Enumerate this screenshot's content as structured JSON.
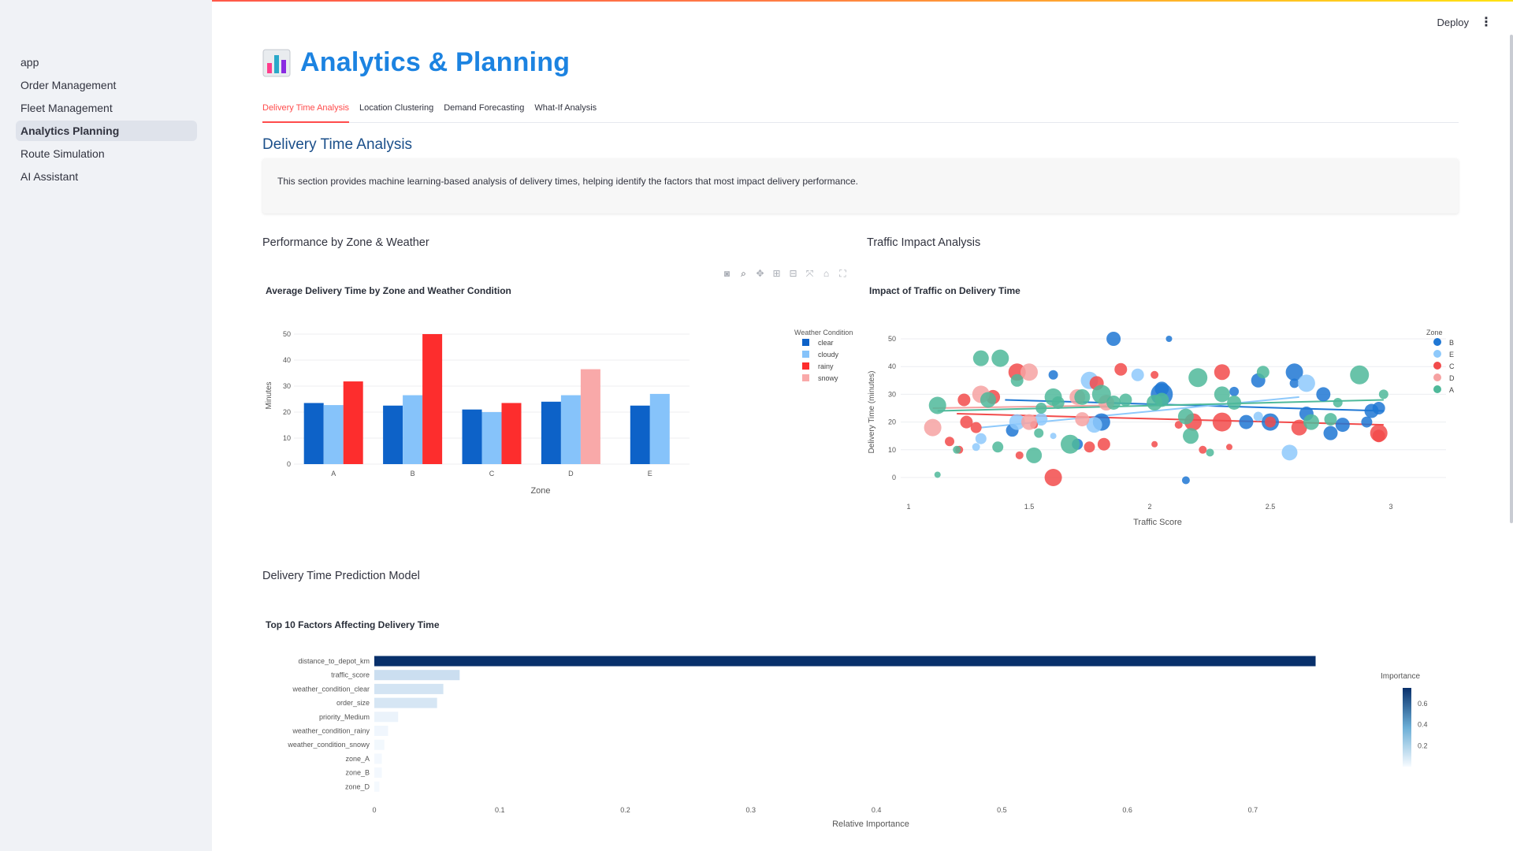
{
  "sidebar": {
    "items": [
      {
        "label": "app",
        "active": false
      },
      {
        "label": "Order Management",
        "active": false
      },
      {
        "label": "Fleet Management",
        "active": false
      },
      {
        "label": "Analytics Planning",
        "active": true
      },
      {
        "label": "Route Simulation",
        "active": false
      },
      {
        "label": "AI Assistant",
        "active": false
      }
    ]
  },
  "header": {
    "deploy_label": "Deploy",
    "menu_icon": "kebab-menu-icon"
  },
  "page": {
    "title": "Analytics & Planning",
    "title_icon": "bar-chart-icon",
    "tabs": [
      {
        "label": "Delivery Time Analysis",
        "active": true
      },
      {
        "label": "Location Clustering",
        "active": false
      },
      {
        "label": "Demand Forecasting",
        "active": false
      },
      {
        "label": "What-If Analysis",
        "active": false
      }
    ],
    "section_title": "Delivery Time Analysis",
    "info_text": "This section provides machine learning-based analysis of delivery times, helping identify the factors that most impact delivery performance.",
    "subheads": {
      "zone_weather": "Performance by Zone & Weather",
      "traffic": "Traffic Impact Analysis",
      "model": "Delivery Time Prediction Model"
    },
    "modebar_icons": [
      "camera-icon",
      "zoom-icon",
      "pan-icon",
      "zoom-in-icon",
      "zoom-out-icon",
      "autoscale-icon",
      "home-icon",
      "fullscreen-icon"
    ]
  },
  "colors": {
    "accent": "#ff4b4b",
    "title": "#1c83e1"
  },
  "chart_data": [
    {
      "type": "bar",
      "title": "Average Delivery Time by Zone and Weather Condition",
      "xlabel": "Zone",
      "ylabel": "Minutes",
      "categories": [
        "A",
        "B",
        "C",
        "D",
        "E"
      ],
      "legend_title": "Weather Condition",
      "ylim": [
        0,
        50
      ],
      "yticks": [
        "0",
        "10",
        "20",
        "30",
        "40",
        "50"
      ],
      "series": [
        {
          "name": "clear",
          "color": "#0d62c8",
          "values": [
            23.5,
            22.5,
            21,
            24,
            22.5
          ]
        },
        {
          "name": "cloudy",
          "color": "#86c3fa",
          "values": [
            22.7,
            26.5,
            20,
            26.5,
            27
          ]
        },
        {
          "name": "rainy",
          "color": "#fd2d2d",
          "values": [
            31.8,
            50,
            23.5,
            null,
            null
          ]
        },
        {
          "name": "snowy",
          "color": "#f9a9a9",
          "values": [
            null,
            null,
            null,
            36.5,
            null
          ]
        }
      ]
    },
    {
      "type": "scatter",
      "title": "Impact of Traffic on Delivery Time",
      "xlabel": "Traffic Score",
      "ylabel": "Delivery Time (minutes)",
      "xlim": [
        1,
        3
      ],
      "ylim": [
        0,
        50
      ],
      "xticks": [
        "1",
        "1.5",
        "2",
        "2.5",
        "3"
      ],
      "yticks": [
        "0",
        "10",
        "20",
        "30",
        "40",
        "50"
      ],
      "legend_title": "Zone",
      "series": [
        {
          "name": "B",
          "color": "#1f77d4",
          "points": [
            [
              1.85,
              50,
              9
            ],
            [
              2.08,
              50,
              4
            ],
            [
              2.05,
              30,
              14
            ],
            [
              2.6,
              38,
              11
            ],
            [
              2.45,
              35,
              9
            ],
            [
              2.35,
              31,
              6
            ],
            [
              2.72,
              30,
              9
            ],
            [
              1.8,
              20,
              11
            ],
            [
              2.4,
              20,
              9
            ],
            [
              2.5,
              20,
              11
            ],
            [
              2.8,
              19,
              9
            ],
            [
              2.92,
              24,
              9
            ],
            [
              2.65,
              23,
              9
            ],
            [
              2.75,
              16,
              9
            ],
            [
              2.95,
              25,
              8
            ],
            [
              1.43,
              17,
              8
            ],
            [
              1.6,
              37,
              6
            ],
            [
              1.7,
              12,
              7
            ],
            [
              2.15,
              -1,
              5
            ],
            [
              2.05,
              32,
              9
            ],
            [
              2.6,
              34,
              6
            ],
            [
              2.9,
              20,
              7
            ]
          ],
          "trend": [
            [
              1.4,
              28
            ],
            [
              2.97,
              24
            ]
          ]
        },
        {
          "name": "E",
          "color": "#8ec9fb",
          "points": [
            [
              1.45,
              20,
              10
            ],
            [
              1.75,
              35,
              11
            ],
            [
              1.95,
              37,
              8
            ],
            [
              2.65,
              34,
              11
            ],
            [
              2.58,
              9,
              10
            ],
            [
              1.3,
              14,
              7
            ],
            [
              1.28,
              11,
              5
            ],
            [
              1.55,
              21,
              8
            ],
            [
              1.6,
              15,
              4
            ],
            [
              1.77,
              19,
              10
            ],
            [
              2.45,
              22,
              6
            ]
          ],
          "trend": [
            [
              1.3,
              18
            ],
            [
              2.62,
              29
            ]
          ]
        },
        {
          "name": "C",
          "color": "#f24b4b",
          "points": [
            [
              1.6,
              0,
              11
            ],
            [
              1.23,
              28,
              8
            ],
            [
              1.24,
              20,
              8
            ],
            [
              1.35,
              29,
              9
            ],
            [
              1.45,
              38,
              11
            ],
            [
              1.78,
              34,
              9
            ],
            [
              1.88,
              39,
              8
            ],
            [
              2.02,
              37,
              5
            ],
            [
              2.18,
              20,
              11
            ],
            [
              2.3,
              38,
              10
            ],
            [
              2.3,
              20,
              12
            ],
            [
              2.62,
              18,
              10
            ],
            [
              2.95,
              16,
              11
            ],
            [
              2.95,
              15,
              8
            ],
            [
              1.28,
              18,
              7
            ],
            [
              1.17,
              13,
              6
            ],
            [
              1.21,
              10,
              5
            ],
            [
              1.46,
              8,
              5
            ],
            [
              1.75,
              11,
              7
            ],
            [
              1.81,
              12,
              8
            ],
            [
              2.02,
              12,
              4
            ],
            [
              2.22,
              10,
              5
            ],
            [
              2.5,
              20,
              7
            ],
            [
              2.33,
              11,
              4
            ],
            [
              1.52,
              19,
              5
            ],
            [
              2.12,
              19,
              5
            ]
          ],
          "trend": [
            [
              1.2,
              23
            ],
            [
              2.97,
              19
            ]
          ]
        },
        {
          "name": "D",
          "color": "#f6a2a2",
          "points": [
            [
              1.1,
              18,
              11
            ],
            [
              1.3,
              30,
              11
            ],
            [
              1.5,
              38,
              11
            ],
            [
              1.5,
              20,
              10
            ],
            [
              1.7,
              29,
              10
            ],
            [
              1.72,
              21,
              9
            ],
            [
              1.82,
              27,
              10
            ]
          ],
          "trend": [
            [
              1.1,
              25
            ],
            [
              1.82,
              26
            ]
          ]
        },
        {
          "name": "A",
          "color": "#4fb99a",
          "points": [
            [
              1.12,
              26,
              11
            ],
            [
              1.3,
              43,
              10
            ],
            [
              1.38,
              43,
              11
            ],
            [
              1.33,
              28,
              10
            ],
            [
              1.45,
              35,
              8
            ],
            [
              1.6,
              29,
              11
            ],
            [
              1.62,
              27,
              8
            ],
            [
              1.67,
              12,
              12
            ],
            [
              1.72,
              29,
              10
            ],
            [
              1.8,
              30,
              12
            ],
            [
              1.85,
              27,
              9
            ],
            [
              1.9,
              28,
              8
            ],
            [
              2.02,
              27,
              10
            ],
            [
              2.05,
              28,
              9
            ],
            [
              2.15,
              22,
              10
            ],
            [
              2.17,
              15,
              10
            ],
            [
              2.2,
              36,
              12
            ],
            [
              2.3,
              30,
              10
            ],
            [
              2.35,
              27,
              9
            ],
            [
              2.47,
              38,
              8
            ],
            [
              2.67,
              20,
              10
            ],
            [
              2.75,
              21,
              8
            ],
            [
              2.87,
              37,
              12
            ],
            [
              2.97,
              30,
              6
            ],
            [
              1.12,
              1,
              4
            ],
            [
              1.2,
              10,
              5
            ],
            [
              1.52,
              8,
              10
            ],
            [
              1.37,
              11,
              7
            ],
            [
              1.54,
              16,
              6
            ],
            [
              2.25,
              9,
              5
            ],
            [
              1.55,
              25,
              7
            ],
            [
              2.78,
              27,
              6
            ]
          ],
          "trend": [
            [
              1.12,
              24
            ],
            [
              2.97,
              28
            ]
          ]
        }
      ]
    },
    {
      "type": "bar",
      "orientation": "horizontal",
      "title": "Top 10 Factors Affecting Delivery Time",
      "xlabel": "Relative Importance",
      "categories": [
        "distance_to_depot_km",
        "traffic_score",
        "weather_condition_clear",
        "order_size",
        "priority_Medium",
        "weather_condition_rainy",
        "weather_condition_snowy",
        "zone_A",
        "zone_B",
        "zone_D"
      ],
      "values": [
        0.75,
        0.068,
        0.055,
        0.05,
        0.019,
        0.011,
        0.008,
        0.006,
        0.006,
        0.004
      ],
      "xlim": [
        0,
        0.82
      ],
      "xticks": [
        "0",
        "0.1",
        "0.2",
        "0.3",
        "0.4",
        "0.5",
        "0.6",
        "0.7"
      ],
      "colorbar_title": "Importance",
      "colorbar_ticks": [
        "0.2",
        "0.4",
        "0.6"
      ]
    }
  ]
}
